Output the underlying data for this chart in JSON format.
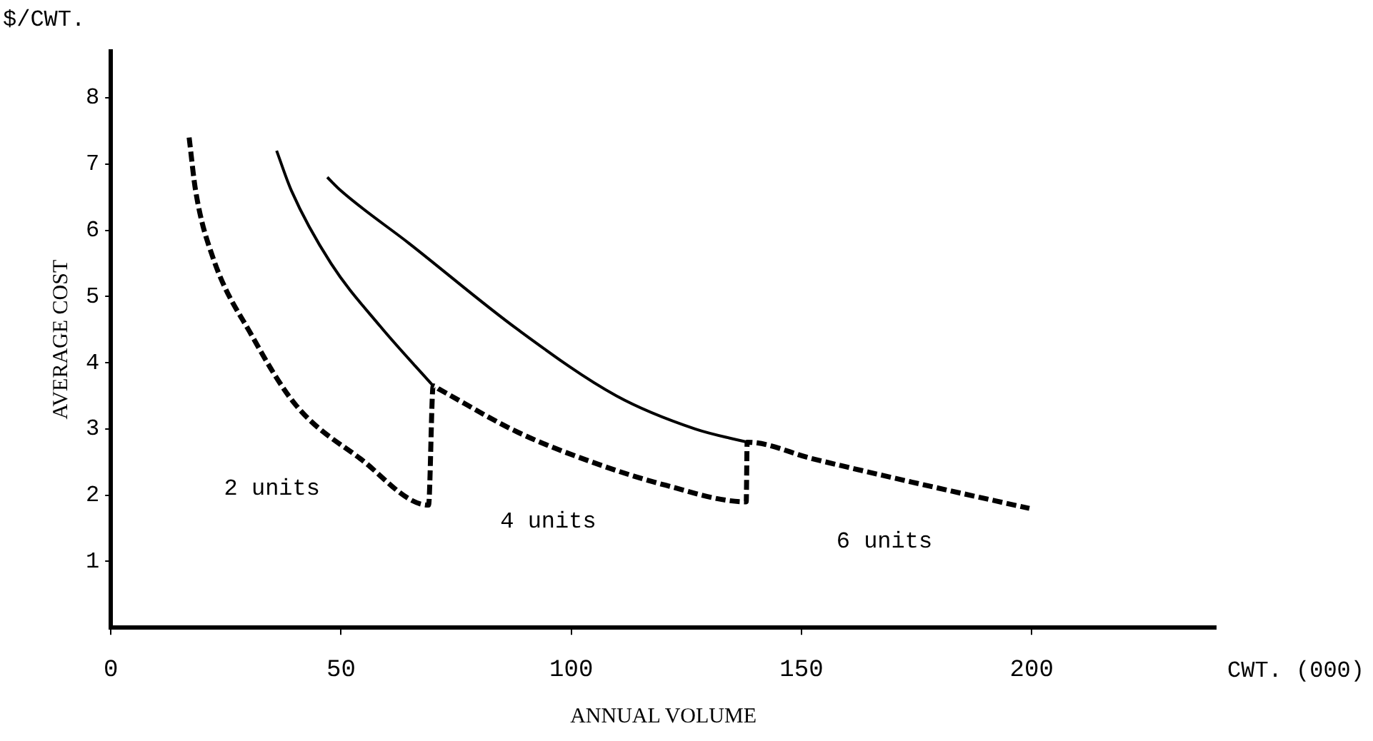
{
  "chart_data": {
    "type": "line",
    "xlabel": "ANNUAL VOLUME",
    "ylabel": "AVERAGE COST",
    "annotations": [
      "$/CWT.",
      "CWT. (000)",
      "2 units",
      "4 units",
      "6 units"
    ],
    "xlim": [
      0,
      240
    ],
    "xticks": [
      0,
      50,
      100,
      150,
      200
    ],
    "ylim": [
      0,
      8.7
    ],
    "yticks": [
      1,
      2,
      3,
      4,
      5,
      6,
      7,
      8
    ],
    "grid": false,
    "legend": false,
    "marker": "none",
    "series": [
      {
        "color": "#000000",
        "line_style": "dashed",
        "x": [
          17,
          18.4,
          22.1,
          30.7,
          40.3,
          54.2,
          69,
          70,
          71.3,
          88.4,
          104.5,
          120.5,
          138,
          138.2,
          152.4,
          173.8,
          199.5
        ],
        "values": [
          7.4,
          6.6,
          5.6,
          4.4,
          3.35,
          2.55,
          1.85,
          3.65,
          3.6,
          2.95,
          2.5,
          2.15,
          1.9,
          2.8,
          2.55,
          2.2,
          1.8
        ]
      },
      {
        "color": "#000000",
        "line_style": "solid",
        "x": [
          36,
          39.2,
          47.8,
          58.5,
          70
        ],
        "values": [
          7.2,
          6.6,
          5.5,
          4.55,
          3.65
        ]
      },
      {
        "color": "#000000",
        "line_style": "solid",
        "x": [
          47,
          49.9,
          64.8,
          88.4,
          109.8,
          126.9,
          138.2
        ],
        "values": [
          6.8,
          6.6,
          5.8,
          4.5,
          3.5,
          3.0,
          2.8
        ]
      }
    ]
  }
}
